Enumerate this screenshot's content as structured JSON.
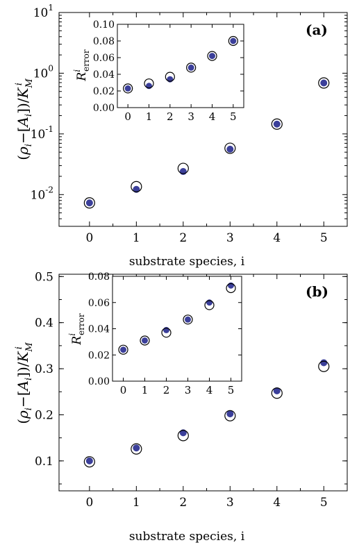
{
  "colors": {
    "filled": "#3b3f9a",
    "open_stroke": "#000000",
    "axis": "#000000"
  },
  "chart_data": [
    {
      "panel": "(a)",
      "type": "scatter",
      "xlabel": "substrate species, i",
      "ylabel": "(ρi−[Ai])/KMi",
      "ylabel_parts": {
        "open": "(",
        "rho": "ρ",
        "rho_sub": "i",
        "minus": "−[",
        "a": "A",
        "a_sub": "i",
        "close": "])/",
        "k": "K",
        "k_sub": "M",
        "k_sup": "i"
      },
      "yscale": "log",
      "xlim": [
        -0.65,
        5.5
      ],
      "ylim": [
        0.003,
        10
      ],
      "x_ticks": [
        "0",
        "1",
        "2",
        "3",
        "4",
        "5"
      ],
      "y_ticks": [
        {
          "base": "10",
          "exp": "-2",
          "value": 0.01
        },
        {
          "base": "10",
          "exp": "-1",
          "value": 0.1
        },
        {
          "base": "10",
          "exp": "0",
          "value": 1
        },
        {
          "base": "10",
          "exp": "1",
          "value": 10
        }
      ],
      "series": [
        {
          "style": "filled",
          "x": [
            0,
            1,
            2,
            3,
            4,
            5
          ],
          "y": [
            0.0073,
            0.0122,
            0.024,
            0.056,
            0.145,
            0.69
          ]
        },
        {
          "style": "open",
          "x": [
            0,
            1,
            2,
            3,
            4,
            5
          ],
          "y": [
            0.0073,
            0.0135,
            0.027,
            0.058,
            0.145,
            0.69
          ]
        }
      ],
      "inset": {
        "type": "scatter",
        "ylabel_base": "R",
        "ylabel_sup": "i",
        "ylabel_sub": "error",
        "xlim": [
          -0.5,
          5.5
        ],
        "ylim": [
          0,
          0.1
        ],
        "x_ticks": [
          "0",
          "1",
          "2",
          "3",
          "4",
          "5"
        ],
        "y_ticks": [
          "0.00",
          "0.02",
          "0.04",
          "0.06",
          "0.08",
          "0.10"
        ],
        "series": [
          {
            "style": "filled",
            "x": [
              0,
              1,
              2,
              3,
              4,
              5
            ],
            "y": [
              0.023,
              0.026,
              0.034,
              0.048,
              0.062,
              0.08
            ]
          },
          {
            "style": "open",
            "x": [
              0,
              1,
              2,
              3,
              4,
              5
            ],
            "y": [
              0.023,
              0.029,
              0.037,
              0.048,
              0.062,
              0.08
            ]
          }
        ]
      }
    },
    {
      "panel": "(b)",
      "type": "scatter",
      "xlabel": "substrate species, i",
      "ylabel": "(ρi−[Ai])/KMi",
      "ylabel_parts": {
        "open": "(",
        "rho": "ρ",
        "rho_sub": "i",
        "minus": "−[",
        "a": "A",
        "a_sub": "i",
        "close": "])/",
        "k": "K",
        "k_sub": "M",
        "k_sup": "i"
      },
      "yscale": "linear",
      "xlim": [
        -0.65,
        5.5
      ],
      "ylim": [
        0.035,
        0.505
      ],
      "x_ticks": [
        "0",
        "1",
        "2",
        "3",
        "4",
        "5"
      ],
      "y_ticks": [
        "0.1",
        "0.2",
        "0.3",
        "0.4",
        "0.5"
      ],
      "series": [
        {
          "style": "filled",
          "x": [
            0,
            1,
            2,
            3,
            4,
            5
          ],
          "y": [
            0.1,
            0.128,
            0.161,
            0.202,
            0.252,
            0.313
          ]
        },
        {
          "style": "open",
          "x": [
            0,
            1,
            2,
            3,
            4,
            5
          ],
          "y": [
            0.098,
            0.126,
            0.155,
            0.198,
            0.247,
            0.305
          ]
        }
      ],
      "inset": {
        "type": "scatter",
        "ylabel_base": "R",
        "ylabel_sup": "i",
        "ylabel_sub": "error",
        "xlim": [
          -0.5,
          5.5
        ],
        "ylim": [
          0,
          0.08
        ],
        "x_ticks": [
          "0",
          "1",
          "2",
          "3",
          "4",
          "5"
        ],
        "y_ticks": [
          "0.00",
          "0.02",
          "0.04",
          "0.06",
          "0.08"
        ],
        "series": [
          {
            "style": "filled",
            "x": [
              0,
              1,
              2,
              3,
              4,
              5
            ],
            "y": [
              0.024,
              0.031,
              0.039,
              0.047,
              0.06,
              0.073
            ]
          },
          {
            "style": "open",
            "x": [
              0,
              1,
              2,
              3,
              4,
              5
            ],
            "y": [
              0.024,
              0.031,
              0.037,
              0.047,
              0.058,
              0.071
            ]
          }
        ]
      }
    }
  ]
}
